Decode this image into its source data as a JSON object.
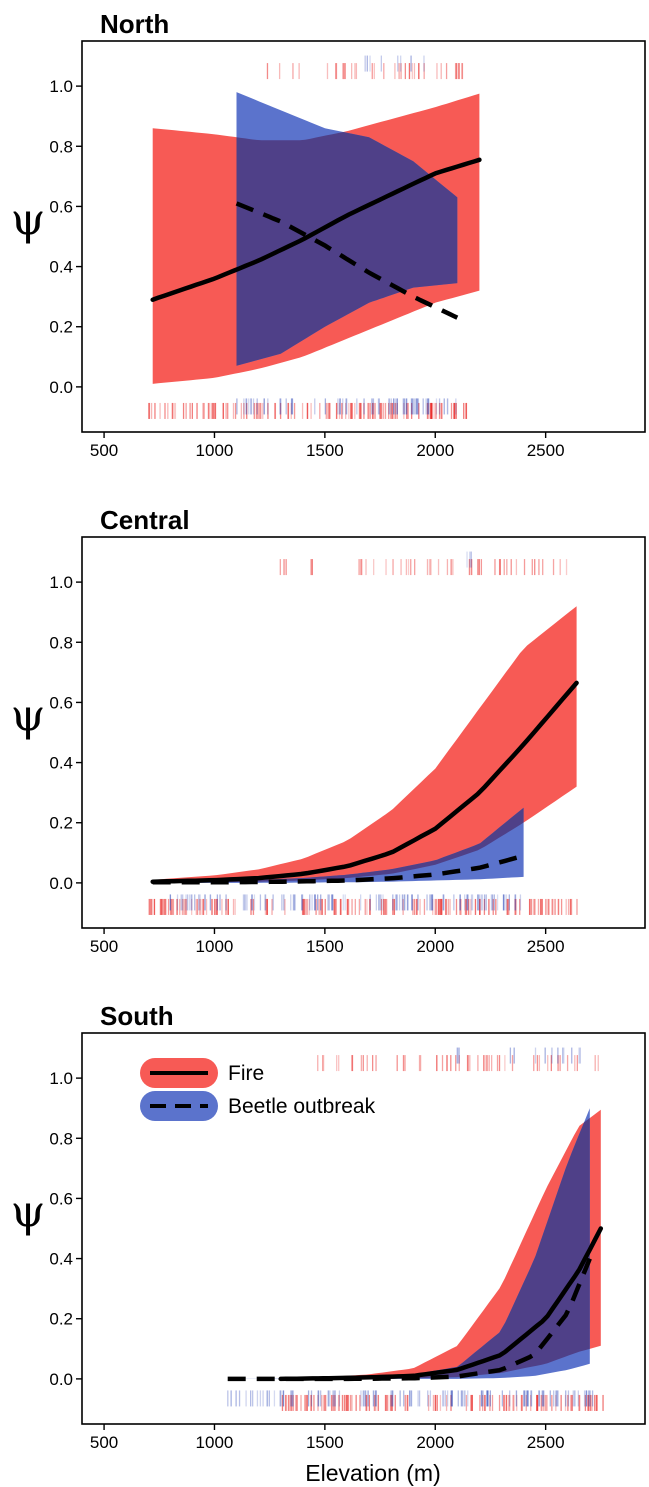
{
  "colors": {
    "fire": "#f75a55",
    "beetle": "#5b73cc",
    "overlap": "#4f4088",
    "fire_rug": "#e8201e",
    "beetle_rug": "#2c46b8",
    "line": "#000000"
  },
  "chart_data": [
    {
      "type": "line",
      "title": "North",
      "xlabel": "",
      "ylabel": "ψ",
      "xlim": [
        400,
        2950
      ],
      "ylim": [
        -0.15,
        1.15
      ],
      "xticks": [
        "500",
        "1000",
        "1500",
        "2000",
        "2500"
      ],
      "yticks": [
        "0.0",
        "0.2",
        "0.4",
        "0.6",
        "0.8",
        "1.0"
      ],
      "grid": false,
      "series": [
        {
          "name": "Fire",
          "style": "solid",
          "x": [
            720,
            1000,
            1200,
            1400,
            1600,
            1800,
            2000,
            2200
          ],
          "y": [
            0.29,
            0.36,
            0.42,
            0.49,
            0.57,
            0.64,
            0.71,
            0.755
          ],
          "lower": [
            0.01,
            0.03,
            0.06,
            0.1,
            0.16,
            0.22,
            0.28,
            0.32
          ],
          "upper": [
            0.86,
            0.84,
            0.82,
            0.82,
            0.85,
            0.89,
            0.93,
            0.975
          ]
        },
        {
          "name": "Beetle outbreak",
          "style": "dashed",
          "x": [
            1100,
            1300,
            1500,
            1700,
            1900,
            2100
          ],
          "y": [
            0.61,
            0.55,
            0.47,
            0.38,
            0.3,
            0.23
          ],
          "lower": [
            0.07,
            0.11,
            0.2,
            0.28,
            0.33,
            0.345
          ],
          "upper": [
            0.98,
            0.92,
            0.86,
            0.83,
            0.75,
            0.63
          ],
          "lower_end": [
            2100,
            0.04
          ]
        }
      ],
      "rugs": {
        "fire_top": [
          [
            1240,
            2180
          ]
        ],
        "beetle_top": [
          [
            1660,
            1950
          ]
        ],
        "fire_bottom": [
          [
            700,
            2150
          ]
        ],
        "beetle_bottom": [
          [
            1100,
            2100
          ]
        ]
      }
    },
    {
      "type": "line",
      "title": "Central",
      "xlabel": "",
      "ylabel": "ψ",
      "xlim": [
        400,
        2950
      ],
      "ylim": [
        -0.15,
        1.15
      ],
      "xticks": [
        "500",
        "1000",
        "1500",
        "2000",
        "2500"
      ],
      "yticks": [
        "0.0",
        "0.2",
        "0.4",
        "0.6",
        "0.8",
        "1.0"
      ],
      "grid": false,
      "series": [
        {
          "name": "Fire",
          "style": "solid",
          "x": [
            720,
            1000,
            1200,
            1400,
            1600,
            1800,
            2000,
            2200,
            2400,
            2640
          ],
          "y": [
            0.004,
            0.009,
            0.016,
            0.03,
            0.055,
            0.1,
            0.18,
            0.3,
            0.46,
            0.665
          ],
          "lower": [
            0.0,
            0.002,
            0.004,
            0.008,
            0.016,
            0.03,
            0.06,
            0.11,
            0.2,
            0.32
          ],
          "upper": [
            0.01,
            0.025,
            0.045,
            0.08,
            0.14,
            0.24,
            0.38,
            0.58,
            0.78,
            0.92
          ]
        },
        {
          "name": "Beetle outbreak",
          "style": "dashed",
          "x": [
            720,
            1000,
            1200,
            1400,
            1600,
            1800,
            2000,
            2200,
            2400
          ],
          "y": [
            0.002,
            0.002,
            0.003,
            0.005,
            0.008,
            0.015,
            0.028,
            0.05,
            0.09
          ],
          "lower": [
            0.0,
            0.0,
            0.0,
            0.001,
            0.002,
            0.004,
            0.008,
            0.012,
            0.02
          ],
          "upper": [
            0.004,
            0.006,
            0.01,
            0.016,
            0.027,
            0.045,
            0.075,
            0.13,
            0.25
          ]
        }
      ],
      "rugs": {
        "fire_top": [
          [
            1290,
            1330
          ],
          [
            1400,
            1480
          ],
          [
            1560,
            2600
          ]
        ],
        "beetle_top": [
          [
            2100,
            2200
          ]
        ],
        "fire_bottom": [
          [
            700,
            2650
          ]
        ],
        "beetle_bottom": [
          [
            800,
            2400
          ]
        ]
      }
    },
    {
      "type": "line",
      "title": "South",
      "xlabel": "Elevation (m)",
      "ylabel": "ψ",
      "xlim": [
        400,
        2950
      ],
      "ylim": [
        -0.15,
        1.15
      ],
      "xticks": [
        "500",
        "1000",
        "1500",
        "2000",
        "2500"
      ],
      "yticks": [
        "0.0",
        "0.2",
        "0.4",
        "0.6",
        "0.8",
        "1.0"
      ],
      "grid": false,
      "legend": {
        "position": "top-left",
        "entries": [
          {
            "label": "Fire",
            "style": "solid",
            "color": "#f75a55"
          },
          {
            "label": "Beetle outbreak",
            "style": "dashed",
            "color": "#5b73cc"
          }
        ]
      },
      "series": [
        {
          "name": "Fire",
          "style": "solid",
          "x": [
            1300,
            1500,
            1700,
            1900,
            2100,
            2300,
            2500,
            2650,
            2750
          ],
          "y": [
            0.0,
            0.002,
            0.005,
            0.01,
            0.03,
            0.08,
            0.2,
            0.36,
            0.5
          ],
          "lower": [
            0.0,
            0.0,
            0.0,
            0.002,
            0.006,
            0.02,
            0.05,
            0.09,
            0.11
          ],
          "upper": [
            0.002,
            0.006,
            0.015,
            0.035,
            0.11,
            0.31,
            0.63,
            0.84,
            0.895
          ]
        },
        {
          "name": "Beetle outbreak",
          "style": "dashed",
          "x": [
            1060,
            1300,
            1600,
            1900,
            2100,
            2300,
            2450,
            2600,
            2700
          ],
          "y": [
            0.0,
            0.0,
            0.0,
            0.002,
            0.008,
            0.03,
            0.08,
            0.22,
            0.4
          ],
          "lower": [
            0.0,
            0.0,
            0.0,
            0.0,
            0.0,
            0.003,
            0.01,
            0.03,
            0.05
          ],
          "upper": [
            0.0,
            0.001,
            0.005,
            0.015,
            0.04,
            0.16,
            0.4,
            0.72,
            0.9
          ]
        }
      ],
      "rugs": {
        "fire_top": [
          [
            1450,
            1500
          ],
          [
            1540,
            2760
          ]
        ],
        "beetle_top": [
          [
            2090,
            2110
          ],
          [
            2300,
            2700
          ]
        ],
        "fire_bottom": [
          [
            1300,
            2760
          ]
        ],
        "beetle_bottom": [
          [
            1060,
            2720
          ]
        ]
      }
    }
  ]
}
